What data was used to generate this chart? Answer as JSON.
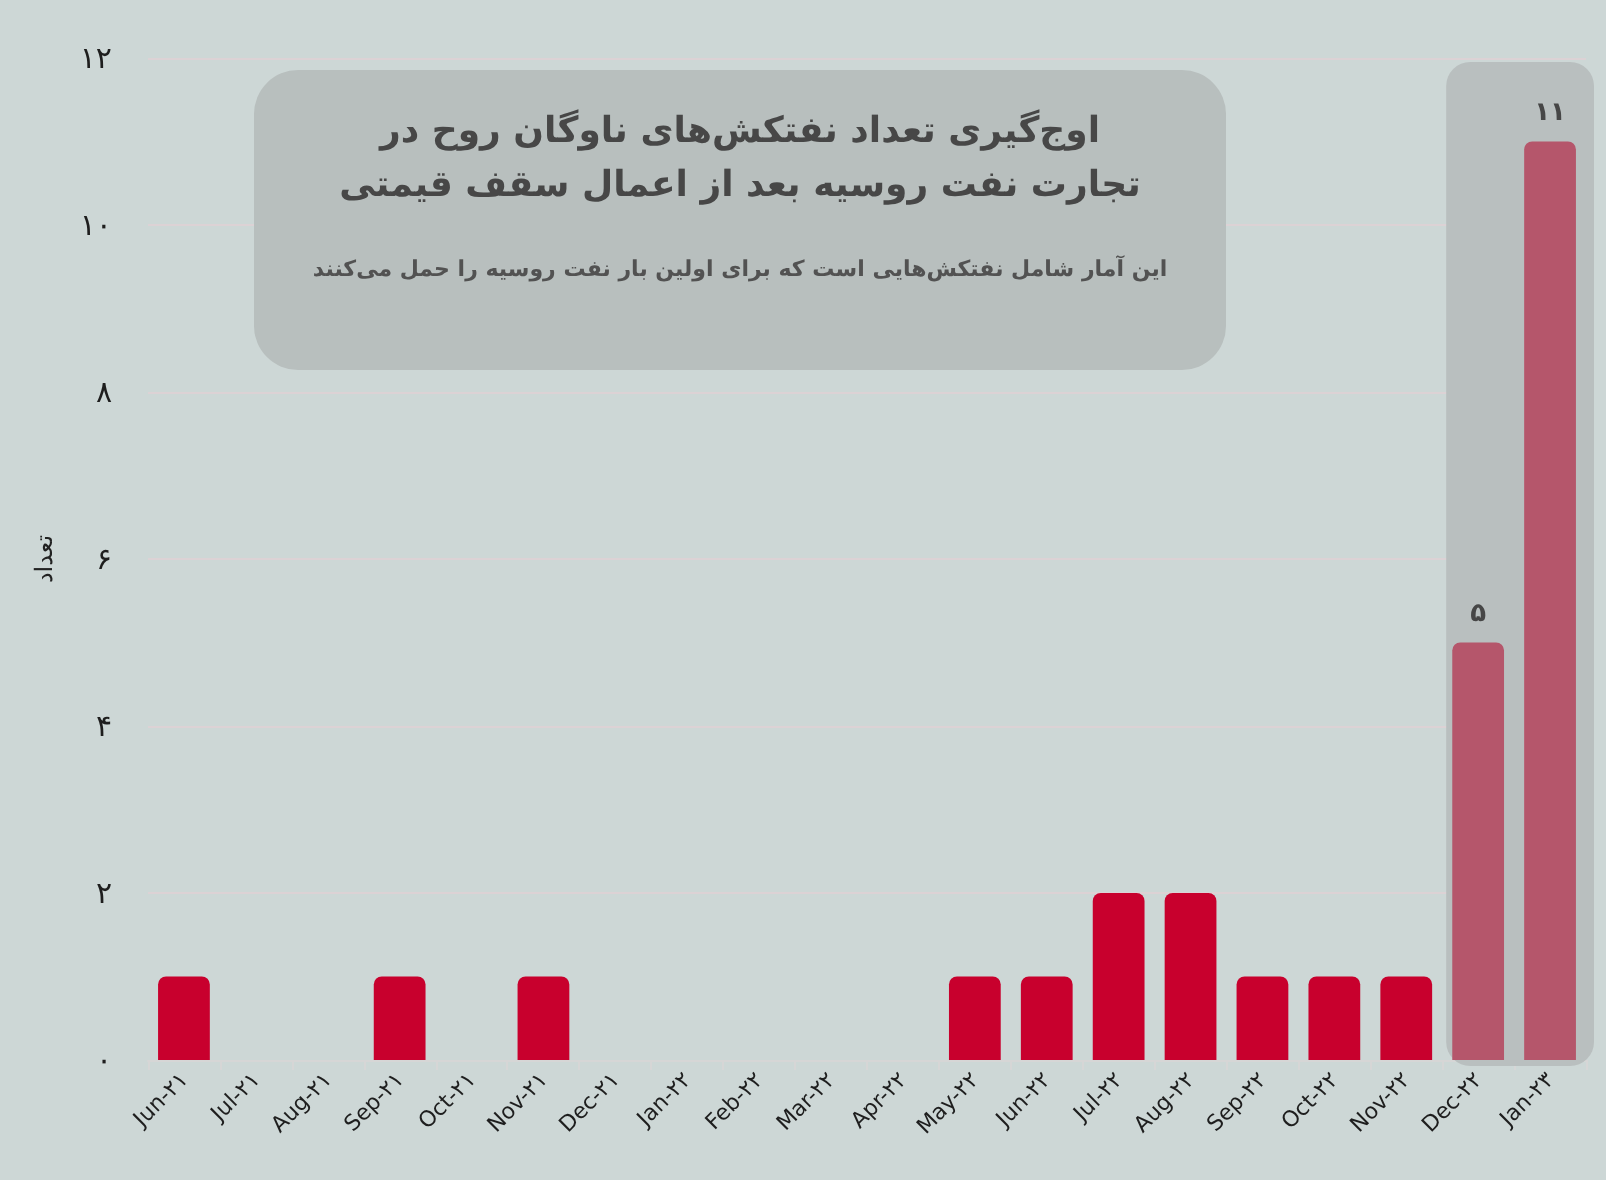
{
  "chart_data": {
    "type": "bar",
    "title": "اوج‌گیری تعداد نفتکش‌های ناوگان روح در تجارت نفت روسیه بعد از اعمال سقف قیمتی",
    "subtitle": "این آمار شامل نفتکش‌هایی است که برای اولین بار نفت روسیه را حمل می‌کنند",
    "ylabel": "تعداد",
    "categories": [
      "Jun-۲۱",
      "Jul-۲۱",
      "Aug-۲۱",
      "Sep-۲۱",
      "Oct-۲۱",
      "Nov-۲۱",
      "Dec-۲۱",
      "Jan-۲۲",
      "Feb-۲۲",
      "Mar-۲۲",
      "Apr-۲۲",
      "May-۲۲",
      "Jun-۲۲",
      "Jul-۲۲",
      "Aug-۲۲",
      "Sep-۲۲",
      "Oct-۲۲",
      "Nov-۲۲",
      "Dec-۲۲",
      "Jan-۲۳"
    ],
    "values": [
      1,
      0,
      0,
      1,
      0,
      1,
      0,
      0,
      0,
      0,
      0,
      1,
      1,
      2,
      2,
      1,
      1,
      1,
      5,
      11
    ],
    "colors": [
      "#c8002d",
      "#c8002d",
      "#c8002d",
      "#c8002d",
      "#c8002d",
      "#c8002d",
      "#c8002d",
      "#c8002d",
      "#c8002d",
      "#c8002d",
      "#c8002d",
      "#c8002d",
      "#c8002d",
      "#c8002d",
      "#c8002d",
      "#c8002d",
      "#c8002d",
      "#c8002d",
      "#b5566b",
      "#b5566b"
    ],
    "value_labels": [
      null,
      null,
      null,
      null,
      null,
      null,
      null,
      null,
      null,
      null,
      null,
      null,
      null,
      null,
      null,
      null,
      null,
      null,
      "۵",
      "۱۱"
    ],
    "ylim": [
      0,
      12
    ],
    "yticks": [
      {
        "value": 0,
        "label": "۰"
      },
      {
        "value": 2,
        "label": "۲"
      },
      {
        "value": 4,
        "label": "۴"
      },
      {
        "value": 6,
        "label": "۶"
      },
      {
        "value": 8,
        "label": "۸"
      },
      {
        "value": 10,
        "label": "۱۰"
      },
      {
        "value": 12,
        "label": "۱۲"
      }
    ],
    "grid": "y",
    "bands": [
      {
        "axis": "x",
        "from": "Dec-۲۲",
        "to": "Jan-۲۳",
        "color": "#b9bfbf"
      }
    ]
  }
}
